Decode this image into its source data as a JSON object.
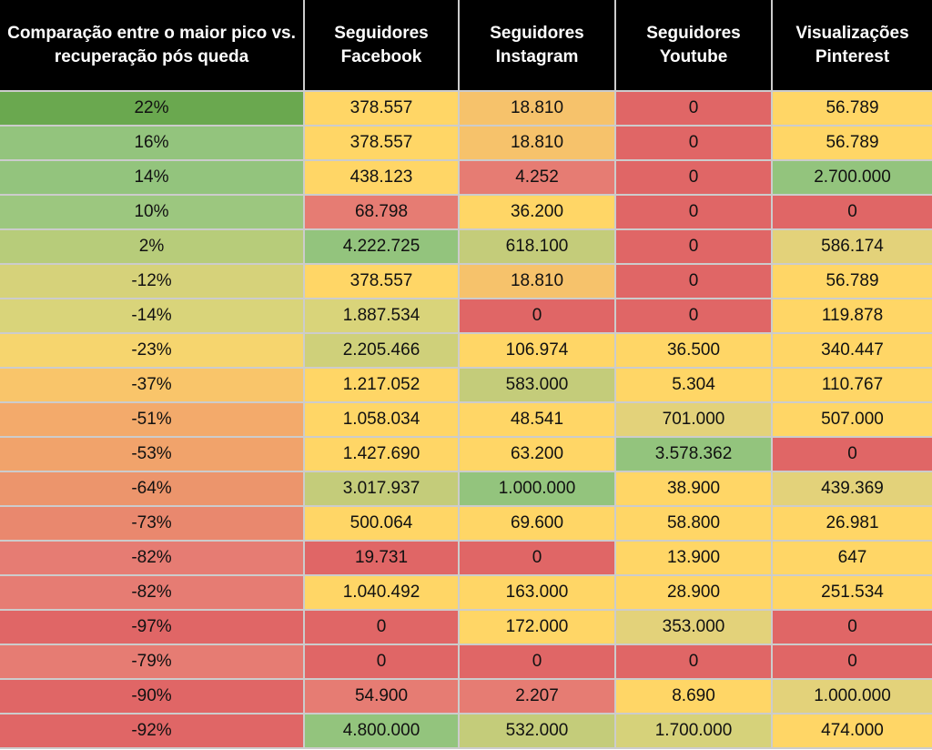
{
  "chart_data": {
    "type": "table",
    "columns": [
      "Comparação entre o maior pico vs. recuperação pós queda",
      "Seguidores Facebook",
      "Seguidores Instagram",
      "Seguidores Youtube",
      "Visualizações Pinterest"
    ],
    "rows": [
      [
        "22%",
        "378.557",
        "18.810",
        "0",
        "56.789"
      ],
      [
        "16%",
        "378.557",
        "18.810",
        "0",
        "56.789"
      ],
      [
        "14%",
        "438.123",
        "4.252",
        "0",
        "2.700.000"
      ],
      [
        "10%",
        "68.798",
        "36.200",
        "0",
        "0"
      ],
      [
        "2%",
        "4.222.725",
        "618.100",
        "0",
        "586.174"
      ],
      [
        "-12%",
        "378.557",
        "18.810",
        "0",
        "56.789"
      ],
      [
        "-14%",
        "1.887.534",
        "0",
        "0",
        "119.878"
      ],
      [
        "-23%",
        "2.205.466",
        "106.974",
        "36.500",
        "340.447"
      ],
      [
        "-37%",
        "1.217.052",
        "583.000",
        "5.304",
        "110.767"
      ],
      [
        "-51%",
        "1.058.034",
        "48.541",
        "701.000",
        "507.000"
      ],
      [
        "-53%",
        "1.427.690",
        "63.200",
        "3.578.362",
        "0"
      ],
      [
        "-64%",
        "3.017.937",
        "1.000.000",
        "38.900",
        "439.369"
      ],
      [
        "-73%",
        "500.064",
        "69.600",
        "58.800",
        "26.981"
      ],
      [
        "-82%",
        "19.731",
        "0",
        "13.900",
        "647"
      ],
      [
        "-82%",
        "1.040.492",
        "163.000",
        "28.900",
        "251.534"
      ],
      [
        "-97%",
        "0",
        "172.000",
        "353.000",
        "0"
      ],
      [
        "-79%",
        "0",
        "0",
        "0",
        "0"
      ],
      [
        "-90%",
        "54.900",
        "2.207",
        "8.690",
        "1.000.000"
      ],
      [
        "-92%",
        "4.800.000",
        "532.000",
        "1.700.000",
        "474.000"
      ]
    ],
    "cell_colors": [
      [
        "#6aa84f",
        "#ffd666",
        "#f6c26b",
        "#e06666",
        "#ffd666"
      ],
      [
        "#93c47d",
        "#ffd666",
        "#f6c26b",
        "#e06666",
        "#ffd666"
      ],
      [
        "#93c47d",
        "#ffd666",
        "#e67c73",
        "#e06666",
        "#93c47d"
      ],
      [
        "#9cc77f",
        "#e67c73",
        "#ffd666",
        "#e06666",
        "#e06666"
      ],
      [
        "#b7cc7a",
        "#93c47d",
        "#c4cc7a",
        "#e06666",
        "#e3d27a"
      ],
      [
        "#d6d27a",
        "#ffd666",
        "#f6c26b",
        "#e06666",
        "#ffd666"
      ],
      [
        "#d9d47a",
        "#d9d47a",
        "#e06666",
        "#e06666",
        "#ffd666"
      ],
      [
        "#f6d56e",
        "#cfd07a",
        "#ffd666",
        "#ffd666",
        "#ffd666"
      ],
      [
        "#f9c56a",
        "#ffd666",
        "#c4cc7a",
        "#ffd666",
        "#ffd666"
      ],
      [
        "#f3aa6b",
        "#ffd666",
        "#ffd666",
        "#e3d27a",
        "#ffd666"
      ],
      [
        "#f1a36b",
        "#ffd666",
        "#ffd666",
        "#93c47d",
        "#e06666"
      ],
      [
        "#ec956c",
        "#c4cc7a",
        "#93c47d",
        "#ffd666",
        "#e3d27a"
      ],
      [
        "#e9886e",
        "#ffd666",
        "#ffd666",
        "#ffd666",
        "#ffd666"
      ],
      [
        "#e67c73",
        "#e06666",
        "#e06666",
        "#ffd666",
        "#ffd666"
      ],
      [
        "#e67c73",
        "#ffd666",
        "#ffd666",
        "#ffd666",
        "#ffd666"
      ],
      [
        "#e06666",
        "#e06666",
        "#ffd666",
        "#e3d27a",
        "#e06666"
      ],
      [
        "#e67c73",
        "#e06666",
        "#e06666",
        "#e06666",
        "#e06666"
      ],
      [
        "#e06666",
        "#e67c73",
        "#e67c73",
        "#ffd666",
        "#e3d27a"
      ],
      [
        "#e06666",
        "#93c47d",
        "#c4cc7a",
        "#d6d27a",
        "#ffd666"
      ]
    ]
  }
}
